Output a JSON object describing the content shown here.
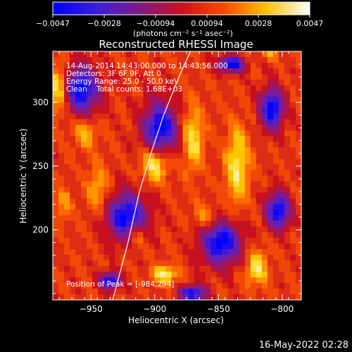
{
  "chart_data": {
    "type": "heatmap",
    "title": "Reconstructed RHESSI Image",
    "colorbar": {
      "unit_label": "(photons cm⁻² s⁻¹ asec⁻²)",
      "tick_labels": [
        "−0.0047",
        "−0.0028",
        "−0.00094",
        "0.00094",
        "0.0028",
        "0.0047"
      ],
      "range": [
        -0.0047,
        0.0047
      ],
      "colormap": [
        "#0000ff",
        "#5522cc",
        "#8a1a7a",
        "#c8101e",
        "#ff5a00",
        "#ffd400",
        "#ffffff"
      ]
    },
    "xlabel": "Heliocentric X (arcsec)",
    "ylabel": "Heliocentric Y (arcsec)",
    "x_ticks": [
      -950,
      -900,
      -850,
      -800
    ],
    "x_tick_labels": [
      "−950",
      "−900",
      "−850",
      "−800"
    ],
    "y_ticks": [
      200,
      250,
      300
    ],
    "y_tick_labels": [
      "200",
      "250",
      "300"
    ],
    "xlim": [
      -980,
      -785
    ],
    "ylim": [
      145,
      340
    ],
    "annotations": [
      "14-Aug-2014 14:43:00.000 to 14:43:56.000",
      "Detectors: 3F 6F 9F, Att 0",
      "Energy Range: 25.0 - 50.0 keV",
      "Clean    Total counts: 1.68E+03"
    ],
    "peak_label": "Position of Peak = [-984,294]",
    "peak": [
      -984,
      294
    ],
    "limb_curve": [
      [
        -933,
        145
      ],
      [
        -921,
        190
      ],
      [
        -912,
        230
      ],
      [
        -903,
        260
      ],
      [
        -893,
        290
      ],
      [
        -881,
        320
      ],
      [
        -872,
        340
      ]
    ]
  },
  "footer": {
    "date": "16-May-2022 02:28"
  }
}
